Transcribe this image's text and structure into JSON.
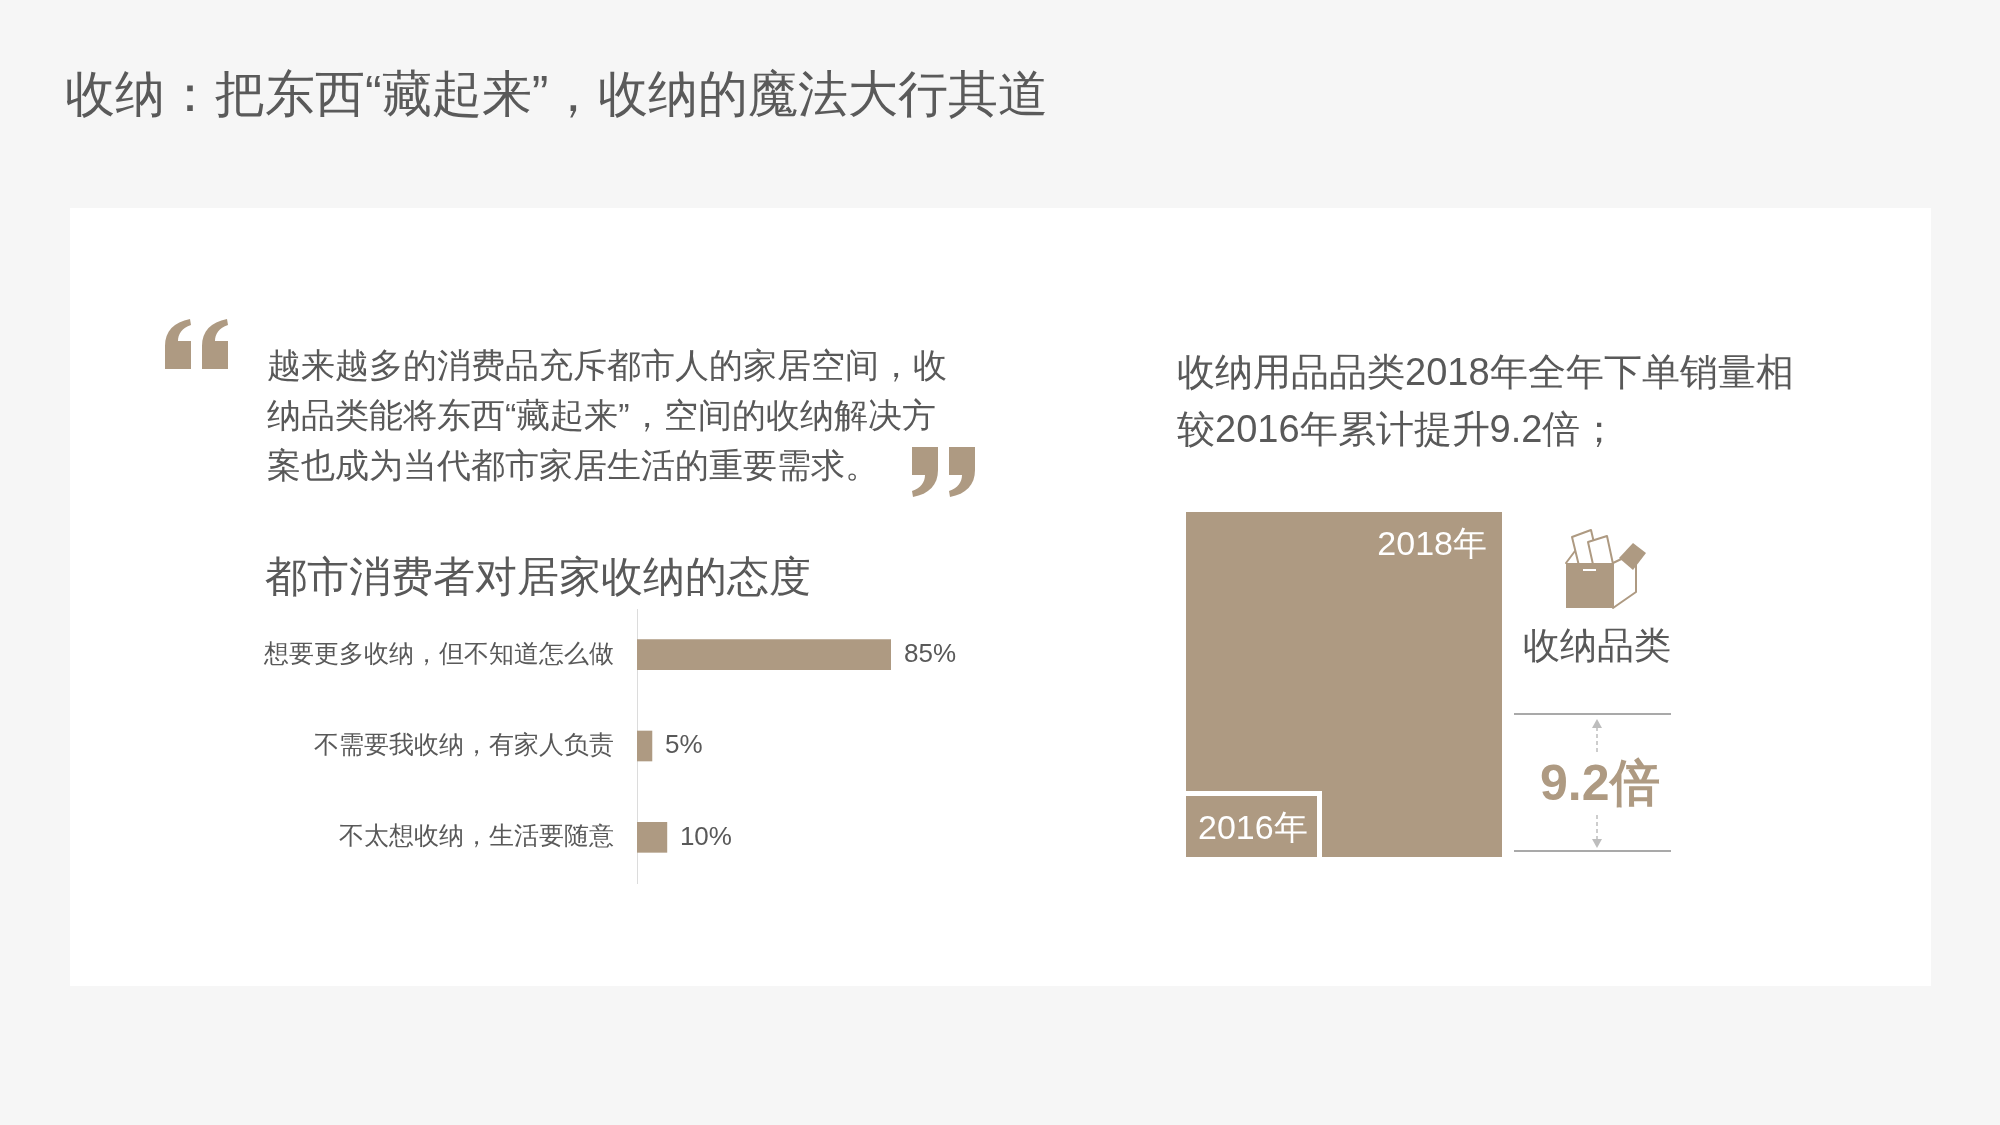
{
  "chart_data": [
    {
      "type": "other",
      "title": "收纳：把东西“藏起来”，收纳的魔法大行其道",
      "annotations": [
        "越来越多的消费品充斥都市人的家居空间，收纳品类能将东西“藏起来”，空间的收纳解决方案也成为当代都市家居生活的重要需求。"
      ]
    },
    {
      "type": "bar",
      "orientation": "horizontal",
      "title": "都市消费者对居家收纳的态度",
      "categories": [
        "想要更多收纳，但不知道怎么做",
        "不需要我收纳，有家人负责",
        "不太想收纳，生活要随意"
      ],
      "values": [
        85,
        5,
        10
      ],
      "value_labels": [
        "85%",
        "5%",
        "10%"
      ],
      "color": "#ae9a82",
      "tick_labels": "y"
    },
    {
      "type": "other",
      "title": "收纳用品品类2018年全年下单销量相较2016年累计提升9.2倍；",
      "annotations": [
        "2018年",
        "2016年",
        "收纳品类",
        "9.2倍"
      ]
    }
  ]
}
